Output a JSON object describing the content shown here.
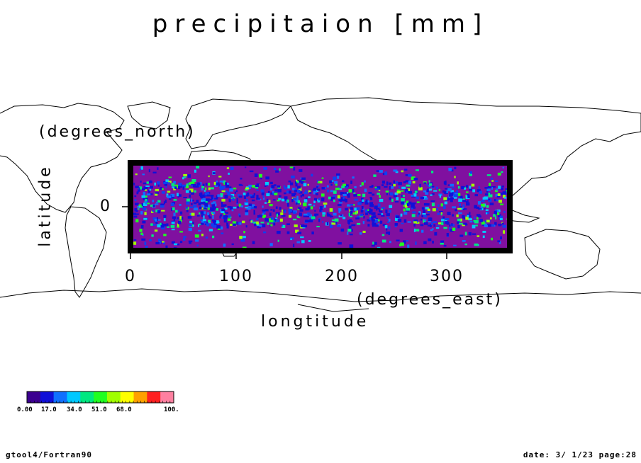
{
  "title": "precipitaion [mm]",
  "map": {
    "x_axis": {
      "label": "longtitude",
      "unit": "(degrees_east)",
      "ticks": [
        "0",
        "100",
        "200",
        "300"
      ],
      "range": [
        0,
        360
      ]
    },
    "y_axis": {
      "label": "latitude",
      "unit": "(degrees_north)",
      "ticks": [
        "0"
      ],
      "range": [
        -30,
        30
      ]
    },
    "colors": {
      "background": "#8010a0",
      "frame": "#000000",
      "coastline": "#000000"
    }
  },
  "colorbar": {
    "labels": [
      "0.00",
      "17.0",
      "34.0",
      "51.0",
      "68.0",
      "100."
    ],
    "colors": [
      "#3c0090",
      "#1010d8",
      "#1070ff",
      "#00c8ff",
      "#00e880",
      "#20ff20",
      "#a0ff00",
      "#ffff00",
      "#ffa000",
      "#ff2020",
      "#ff80a0"
    ]
  },
  "footer": {
    "left": "gtool4/Fortran90",
    "right": "date: 3/ 1/23 page:28"
  }
}
